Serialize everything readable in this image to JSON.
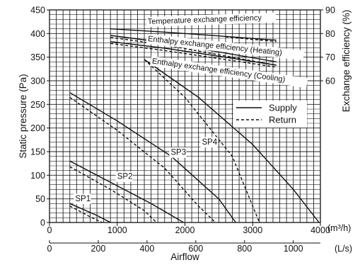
{
  "chart_data": {
    "type": "line",
    "ylabel_left": "Static pressure (Pa)",
    "ylabel_right": "Exchange efficiency (%)",
    "xlabel": "Airflow",
    "x_axis_top": {
      "unit": "(m³/h)",
      "range": [
        0,
        4000
      ],
      "ticks": [
        0,
        1000,
        2000,
        3000,
        4000
      ]
    },
    "x_axis_bottom": {
      "unit": "(L/s)",
      "ticks": [
        0,
        200,
        400,
        600,
        800,
        1000
      ]
    },
    "y_left": {
      "range": [
        0,
        450
      ],
      "ticks": [
        0,
        50,
        100,
        150,
        200,
        250,
        300,
        350,
        400,
        450
      ]
    },
    "y_right": {
      "range": [
        0,
        90
      ],
      "ticks": [
        60,
        70,
        80,
        90
      ]
    },
    "grid": true,
    "legend": {
      "position": "right",
      "entries": [
        {
          "label": "Supply",
          "style": "solid"
        },
        {
          "label": "Return",
          "style": "dashed"
        }
      ]
    },
    "series": [
      {
        "name": "SP1",
        "axis": "left",
        "style": "solid",
        "x": [
          300,
          700,
          900
        ],
        "y": [
          40,
          15,
          0
        ]
      },
      {
        "name": "SP1",
        "axis": "left",
        "style": "dashed",
        "x": [
          300,
          600,
          780
        ],
        "y": [
          35,
          12,
          0
        ]
      },
      {
        "name": "SP2",
        "axis": "left",
        "style": "solid",
        "x": [
          300,
          900,
          1500,
          1980
        ],
        "y": [
          130,
          85,
          40,
          0
        ]
      },
      {
        "name": "SP2",
        "axis": "left",
        "style": "dashed",
        "x": [
          300,
          900,
          1400,
          1580
        ],
        "y": [
          118,
          70,
          25,
          0
        ]
      },
      {
        "name": "SP3",
        "axis": "left",
        "style": "solid",
        "x": [
          300,
          1000,
          1800,
          2500,
          2750
        ],
        "y": [
          275,
          215,
          140,
          50,
          0
        ]
      },
      {
        "name": "SP3",
        "axis": "left",
        "style": "dashed",
        "x": [
          300,
          1000,
          1700,
          2200,
          2450
        ],
        "y": [
          265,
          195,
          115,
          35,
          0
        ]
      },
      {
        "name": "SP4",
        "axis": "left",
        "style": "solid",
        "x": [
          1400,
          2200,
          3000,
          3600,
          3980
        ],
        "y": [
          345,
          265,
          165,
          70,
          0
        ]
      },
      {
        "name": "SP4",
        "axis": "left",
        "style": "dashed",
        "x": [
          1400,
          2000,
          2700,
          3100
        ],
        "y": [
          345,
          265,
          140,
          0
        ]
      },
      {
        "name": "Temperature exchange efficiency",
        "axis": "right",
        "style": "solid",
        "x": [
          900,
          1700,
          2500,
          3350
        ],
        "y": [
          82.0,
          80.6,
          79.0,
          77.2
        ]
      },
      {
        "name": "Temperature exchange efficiency",
        "axis": "right",
        "style": "dashed",
        "x": [
          2600,
          3350
        ],
        "y": [
          78.6,
          76.6
        ]
      },
      {
        "name": "Enthalpy exchange efficiency (Heating)",
        "axis": "right",
        "style": "solid",
        "x": [
          900,
          1700,
          2500,
          3350
        ],
        "y": [
          79.2,
          76.2,
          72.2,
          68.0
        ]
      },
      {
        "name": "Enthalpy exchange efficiency (Heating)",
        "axis": "right",
        "style": "dashed",
        "x": [
          900,
          1700,
          2500,
          3350
        ],
        "y": [
          78.4,
          75.2,
          71.0,
          66.6
        ]
      },
      {
        "name": "Enthalpy exchange efficiency (Cooling)",
        "axis": "right",
        "style": "solid",
        "x": [
          900,
          1700,
          2500,
          3350
        ],
        "y": [
          76.6,
          73.8,
          70.4,
          66.6
        ]
      },
      {
        "name": "Enthalpy exchange efficiency (Cooling)",
        "axis": "right",
        "style": "dashed",
        "x": [
          900,
          1700,
          2500,
          3350
        ],
        "y": [
          75.8,
          72.8,
          69.4,
          65.8
        ]
      }
    ],
    "annotations": [
      {
        "text": "Temperature exchange efficiency",
        "x": 1450,
        "y_right": 84.0,
        "rotate": -2
      },
      {
        "text": "Enthalpy exchange efficiency (Heating)",
        "x": 1450,
        "y_right": 76.8,
        "rotate": 6
      },
      {
        "text": "Enthalpy exchange efficiency (Cooling)",
        "x": 1510,
        "y_right": 67.4,
        "rotate": 8
      },
      {
        "text": "SP1",
        "x": 380,
        "y_left": 45
      },
      {
        "text": "SP2",
        "x": 1000,
        "y_left": 92
      },
      {
        "text": "SP3",
        "x": 1790,
        "y_left": 143
      },
      {
        "text": "SP4",
        "x": 2250,
        "y_left": 165
      }
    ]
  }
}
